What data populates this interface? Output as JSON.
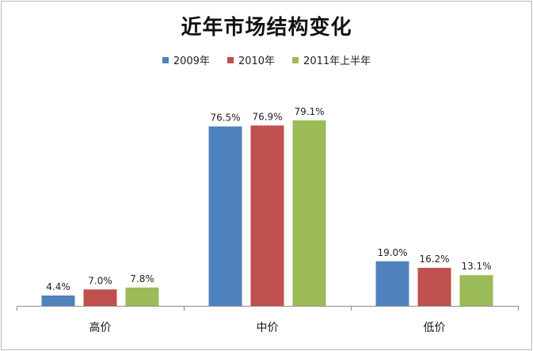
{
  "chart_data": {
    "type": "bar",
    "title": "近年市场结构变化",
    "categories": [
      "高价",
      "中价",
      "低价"
    ],
    "series": [
      {
        "name": "2009年",
        "color": "#4f81bd",
        "values": [
          4.4,
          76.5,
          19.0
        ]
      },
      {
        "name": "2010年",
        "color": "#c0504d",
        "values": [
          7.0,
          76.9,
          16.2
        ]
      },
      {
        "name": "2011年上半年",
        "color": "#9bbb59",
        "values": [
          7.8,
          79.1,
          13.1
        ]
      }
    ],
    "data_labels": [
      [
        "4.4%",
        "76.5%",
        "19.0%"
      ],
      [
        "7.0%",
        "76.9%",
        "16.2%"
      ],
      [
        "7.8%",
        "79.1%",
        "13.1%"
      ]
    ],
    "xlabel": "",
    "ylabel": "",
    "ylim": [
      0,
      100
    ],
    "grid": false,
    "legend_position": "top"
  }
}
